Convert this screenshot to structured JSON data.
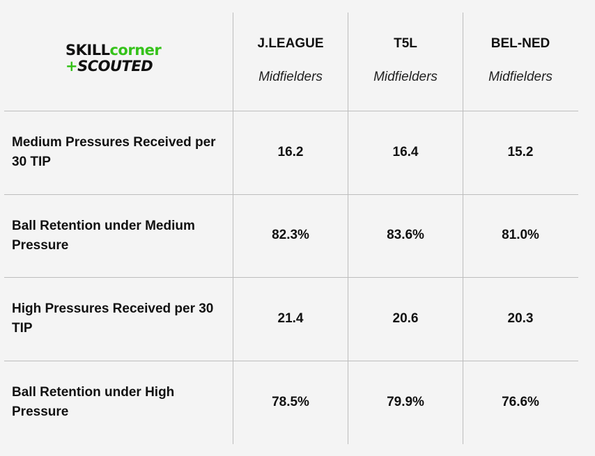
{
  "brand": {
    "line1_a": "SKILL",
    "line1_b": "corner",
    "line2_plus": "+",
    "line2_b": "SCOUTED",
    "colors": {
      "green": "#35c21a",
      "dark": "#111111"
    }
  },
  "chart_data": {
    "type": "table",
    "columns": [
      {
        "name": "J.LEAGUE",
        "subtitle": "Midfielders"
      },
      {
        "name": "T5L",
        "subtitle": "Midfielders"
      },
      {
        "name": "BEL-NED",
        "subtitle": "Midfielders"
      }
    ],
    "rows": [
      {
        "label": "Medium Pressures Received per 30 TIP",
        "values": [
          "16.2",
          "16.4",
          "15.2"
        ]
      },
      {
        "label": "Ball Retention under Medium Pressure",
        "values": [
          "82.3%",
          "83.6%",
          "81.0%"
        ]
      },
      {
        "label": "High Pressures Received per 30 TIP",
        "values": [
          "21.4",
          "20.6",
          "20.3"
        ]
      },
      {
        "label": "Ball Retention under High Pressure",
        "values": [
          "78.5%",
          "79.9%",
          "76.6%"
        ]
      }
    ]
  }
}
